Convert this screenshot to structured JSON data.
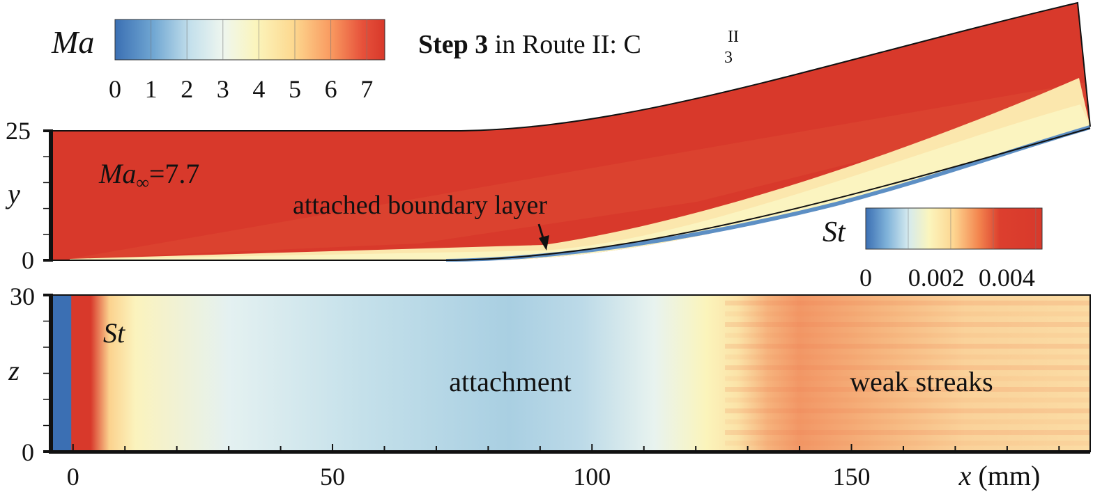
{
  "chart_data": [
    {
      "type": "heatmap",
      "panel": "upper",
      "title_bold": "Step 3",
      "title_rest": " in Route II: C",
      "title_sup": "II",
      "title_sub": "3",
      "ylabel": "y",
      "y_ticks": [
        "0",
        "25"
      ],
      "ylim": [
        0,
        25
      ],
      "colorbar": {
        "label": "Ma",
        "ticks": [
          "0",
          "1",
          "2",
          "3",
          "4",
          "5",
          "6",
          "7"
        ],
        "range": [
          0,
          7.5
        ],
        "colors": [
          "#3a6fb4",
          "#8fc1dc",
          "#e6f2f4",
          "#fbf6bb",
          "#fdd58c",
          "#f9915c",
          "#e04a34",
          "#d93a2c"
        ]
      },
      "annotations": {
        "freestream_base": "Ma",
        "freestream_sub": "∞",
        "freestream_val": "=7.7",
        "boundary_layer": "attached boundary layer"
      }
    },
    {
      "type": "heatmap",
      "panel": "lower",
      "xlabel_var": "x",
      "xlabel_unit": " (mm)",
      "x_ticks": [
        "0",
        "50",
        "100",
        "150"
      ],
      "xlim": [
        -4,
        196
      ],
      "ylabel": "z",
      "y_ticks": [
        "0",
        "30"
      ],
      "ylim": [
        0,
        30
      ],
      "field_label": "St",
      "colorbar": {
        "label": "St",
        "ticks": [
          "0",
          "0.002",
          "0.004"
        ],
        "range": [
          0,
          0.005
        ],
        "colors": [
          "#3a6fb4",
          "#b5d9e8",
          "#fbf6bb",
          "#fdd58c",
          "#f07a4c",
          "#d93a2c"
        ]
      },
      "annotations": {
        "middle": "attachment",
        "right": "weak streaks"
      }
    }
  ]
}
